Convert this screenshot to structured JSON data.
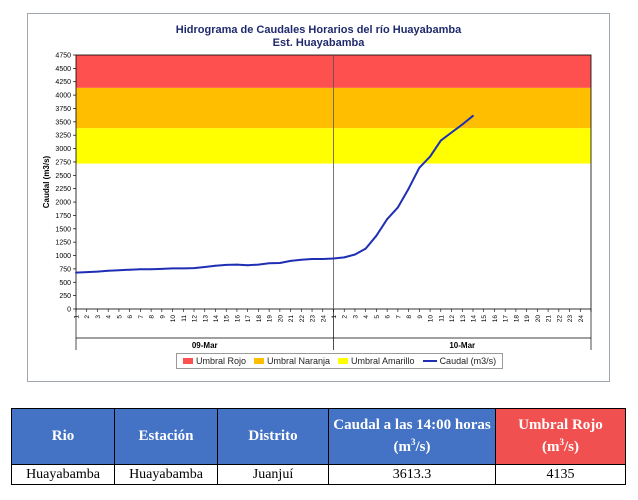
{
  "chart_data": {
    "type": "line",
    "title": "Hidrograma de Caudales Horarios del río Huayabamba",
    "subtitle": "Est. Huayabamba",
    "ylabel": "Caudal  (m3/s)",
    "ylim": [
      0,
      4750
    ],
    "yticks": [
      0,
      250,
      500,
      750,
      1000,
      1250,
      1500,
      1750,
      2000,
      2250,
      2500,
      2750,
      3000,
      3250,
      3500,
      3750,
      4000,
      4250,
      4500,
      4750
    ],
    "xticks": [
      "1",
      "2",
      "3",
      "4",
      "5",
      "6",
      "7",
      "8",
      "9",
      "10",
      "11",
      "12",
      "13",
      "14",
      "15",
      "16",
      "17",
      "18",
      "19",
      "20",
      "21",
      "22",
      "23",
      "24",
      "1",
      "2",
      "3",
      "4",
      "5",
      "6",
      "7",
      "8",
      "9",
      "10",
      "11",
      "12",
      "13",
      "14",
      "15",
      "16",
      "17",
      "18",
      "19",
      "20",
      "21",
      "22",
      "23",
      "24"
    ],
    "days": [
      "09-Mar",
      "10-Mar"
    ],
    "thresholds": [
      {
        "name": "Umbral Rojo",
        "from": 4135,
        "to": 4750,
        "color": "#ff5050"
      },
      {
        "name": "Umbral Naranja",
        "from": 3380,
        "to": 4135,
        "color": "#ffbf00"
      },
      {
        "name": "Umbral Amarillo",
        "from": 2720,
        "to": 3380,
        "color": "#ffff00"
      }
    ],
    "series": [
      {
        "name": "Caudal (m3/s)",
        "color": "#1f2fb4",
        "values": [
          680,
          690,
          700,
          715,
          725,
          735,
          745,
          745,
          750,
          760,
          760,
          765,
          785,
          810,
          825,
          830,
          820,
          830,
          855,
          860,
          900,
          920,
          935,
          935,
          945,
          965,
          1020,
          1130,
          1370,
          1680,
          1900,
          2250,
          2640,
          2850,
          3150,
          3300,
          3450,
          3613.3
        ]
      }
    ],
    "legend": [
      "Umbral Rojo",
      "Umbral Naranja",
      "Umbral Amarillo",
      "Caudal (m3/s)"
    ],
    "legend_position": "bottom",
    "grid": false
  },
  "table": {
    "headers": {
      "rio": "Rio",
      "estacion": "Estación",
      "distrito": "Distrito",
      "caudal_pre": "Caudal a las 14:00 horas",
      "caudal_unit": "(m",
      "caudal_sup": "3",
      "caudal_end": "/s)",
      "umbral": "Umbral Rojo",
      "umbral_unit": "(m",
      "umbral_sup": "3",
      "umbral_end": "/s)"
    },
    "row": {
      "rio": "Huayabamba",
      "estacion": "Huayabamba",
      "distrito": "Juanjuí",
      "caudal": "3613.3",
      "umbral": "4135"
    }
  }
}
